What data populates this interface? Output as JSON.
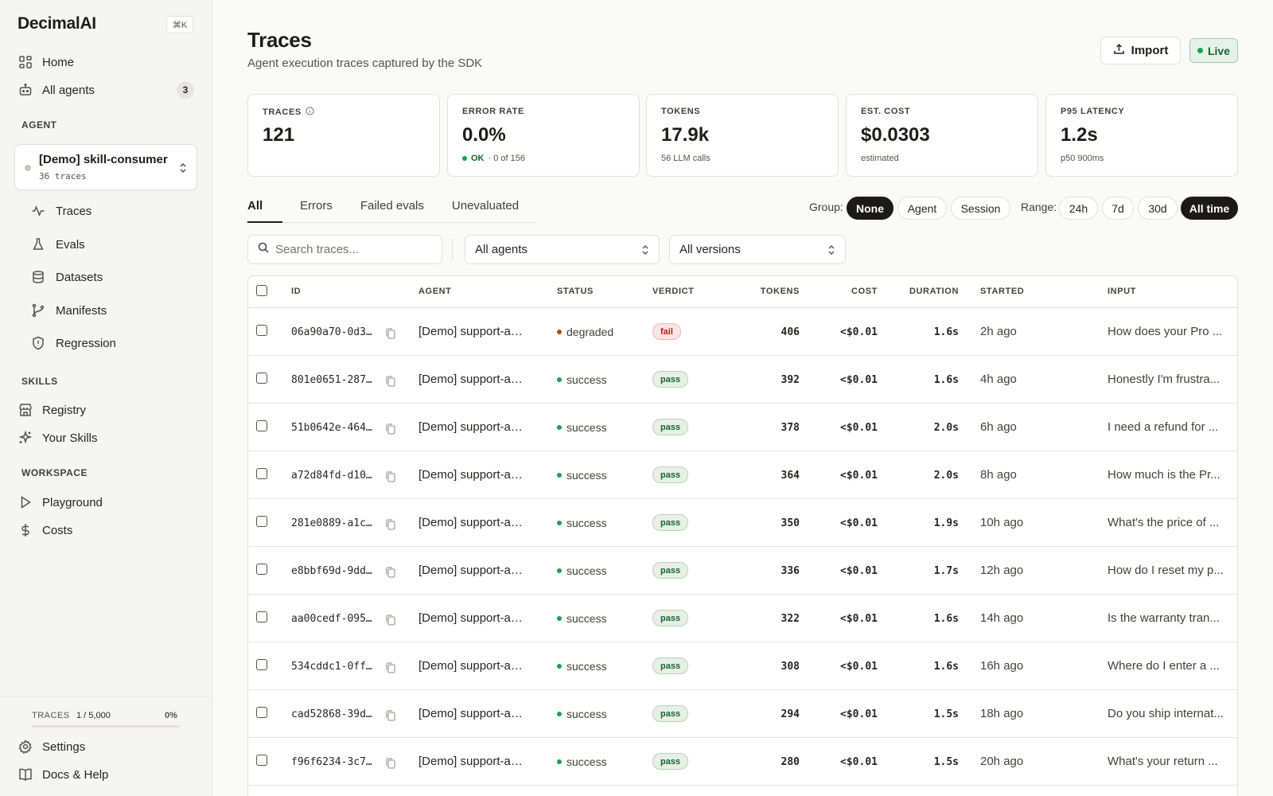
{
  "app": {
    "brand": "DecimalAI",
    "shortcut": "⌘K"
  },
  "sidebar": {
    "top_items": [
      {
        "label": "Home",
        "icon": "grid-icon"
      },
      {
        "label": "All agents",
        "icon": "bot-icon",
        "badge": "3"
      }
    ],
    "agent_section_label": "AGENT",
    "agent": {
      "name": "[Demo] skill-consumer",
      "traces": "36 traces"
    },
    "agent_items": [
      {
        "label": "Traces",
        "icon": "activity-icon"
      },
      {
        "label": "Evals",
        "icon": "flask-icon"
      },
      {
        "label": "Datasets",
        "icon": "database-icon"
      },
      {
        "label": "Manifests",
        "icon": "git-branch-icon"
      },
      {
        "label": "Regression",
        "icon": "shield-icon"
      }
    ],
    "skills_section_label": "SKILLS",
    "skills_items": [
      {
        "label": "Registry",
        "icon": "store-icon"
      },
      {
        "label": "Your Skills",
        "icon": "sparkles-icon"
      }
    ],
    "workspace_section_label": "WORKSPACE",
    "workspace_items": [
      {
        "label": "Playground",
        "icon": "play-icon"
      },
      {
        "label": "Costs",
        "icon": "dollar-icon"
      }
    ],
    "usage": {
      "label": "TRACES",
      "count": "1 / 5,000",
      "percent": "0%",
      "fraction": 0.0002
    },
    "bottom_items": [
      {
        "label": "Settings",
        "icon": "gear-icon"
      },
      {
        "label": "Docs & Help",
        "icon": "book-icon"
      }
    ]
  },
  "header": {
    "title": "Traces",
    "subtitle": "Agent execution traces captured by the SDK",
    "import_label": "Import",
    "live_label": "Live"
  },
  "stats": [
    {
      "label": "TRACES",
      "value": "121",
      "note": "",
      "info": true
    },
    {
      "label": "ERROR RATE",
      "value": "0.0%",
      "note_ok": "OK",
      "note": "· 0 of 156"
    },
    {
      "label": "TOKENS",
      "value": "17.9k",
      "note": "56 LLM calls"
    },
    {
      "label": "EST. COST",
      "value": "$0.0303",
      "note": "estimated"
    },
    {
      "label": "P95 LATENCY",
      "value": "1.2s",
      "note": "p50 900ms"
    }
  ],
  "tabs": [
    "All",
    "Errors",
    "Failed evals",
    "Unevaluated"
  ],
  "group": {
    "label": "Group:",
    "options": [
      "None",
      "Agent",
      "Session"
    ],
    "selected": "None"
  },
  "range": {
    "label": "Range:",
    "options": [
      "24h",
      "7d",
      "30d",
      "All time"
    ],
    "selected": "All time"
  },
  "filters": {
    "search_placeholder": "Search traces...",
    "agent_select": "All agents",
    "version_select": "All versions"
  },
  "table": {
    "columns": [
      "ID",
      "AGENT",
      "STATUS",
      "VERDICT",
      "TOKENS",
      "COST",
      "DURATION",
      "STARTED",
      "INPUT"
    ],
    "rows": [
      {
        "id": "06a90a70-0d3…",
        "agent": "[Demo] support-a…",
        "status": "degraded",
        "verdict": "fail",
        "tokens": "406",
        "cost": "<$0.01",
        "duration": "1.6s",
        "started": "2h ago",
        "input": "How does your Pro ..."
      },
      {
        "id": "801e0651-287…",
        "agent": "[Demo] support-a…",
        "status": "success",
        "verdict": "pass",
        "tokens": "392",
        "cost": "<$0.01",
        "duration": "1.6s",
        "started": "4h ago",
        "input": "Honestly I'm frustra..."
      },
      {
        "id": "51b0642e-464…",
        "agent": "[Demo] support-a…",
        "status": "success",
        "verdict": "pass",
        "tokens": "378",
        "cost": "<$0.01",
        "duration": "2.0s",
        "started": "6h ago",
        "input": "I need a refund for ..."
      },
      {
        "id": "a72d84fd-d10…",
        "agent": "[Demo] support-a…",
        "status": "success",
        "verdict": "pass",
        "tokens": "364",
        "cost": "<$0.01",
        "duration": "2.0s",
        "started": "8h ago",
        "input": "How much is the Pr..."
      },
      {
        "id": "281e0889-a1c…",
        "agent": "[Demo] support-a…",
        "status": "success",
        "verdict": "pass",
        "tokens": "350",
        "cost": "<$0.01",
        "duration": "1.9s",
        "started": "10h ago",
        "input": "What's the price of ..."
      },
      {
        "id": "e8bbf69d-9dd…",
        "agent": "[Demo] support-a…",
        "status": "success",
        "verdict": "pass",
        "tokens": "336",
        "cost": "<$0.01",
        "duration": "1.7s",
        "started": "12h ago",
        "input": "How do I reset my p..."
      },
      {
        "id": "aa00cedf-095…",
        "agent": "[Demo] support-a…",
        "status": "success",
        "verdict": "pass",
        "tokens": "322",
        "cost": "<$0.01",
        "duration": "1.6s",
        "started": "14h ago",
        "input": "Is the warranty tran..."
      },
      {
        "id": "534cddc1-0ff…",
        "agent": "[Demo] support-a…",
        "status": "success",
        "verdict": "pass",
        "tokens": "308",
        "cost": "<$0.01",
        "duration": "1.6s",
        "started": "16h ago",
        "input": "Where do I enter a ..."
      },
      {
        "id": "cad52868-39d…",
        "agent": "[Demo] support-a…",
        "status": "success",
        "verdict": "pass",
        "tokens": "294",
        "cost": "<$0.01",
        "duration": "1.5s",
        "started": "18h ago",
        "input": "Do you ship internat..."
      },
      {
        "id": "f96f6234-3c7…",
        "agent": "[Demo] support-a…",
        "status": "success",
        "verdict": "pass",
        "tokens": "280",
        "cost": "<$0.01",
        "duration": "1.5s",
        "started": "20h ago",
        "input": "What's your return ..."
      }
    ]
  },
  "colors": {
    "degraded": "#c2410c",
    "success": "#16a34a",
    "accent": "#1c1917"
  }
}
